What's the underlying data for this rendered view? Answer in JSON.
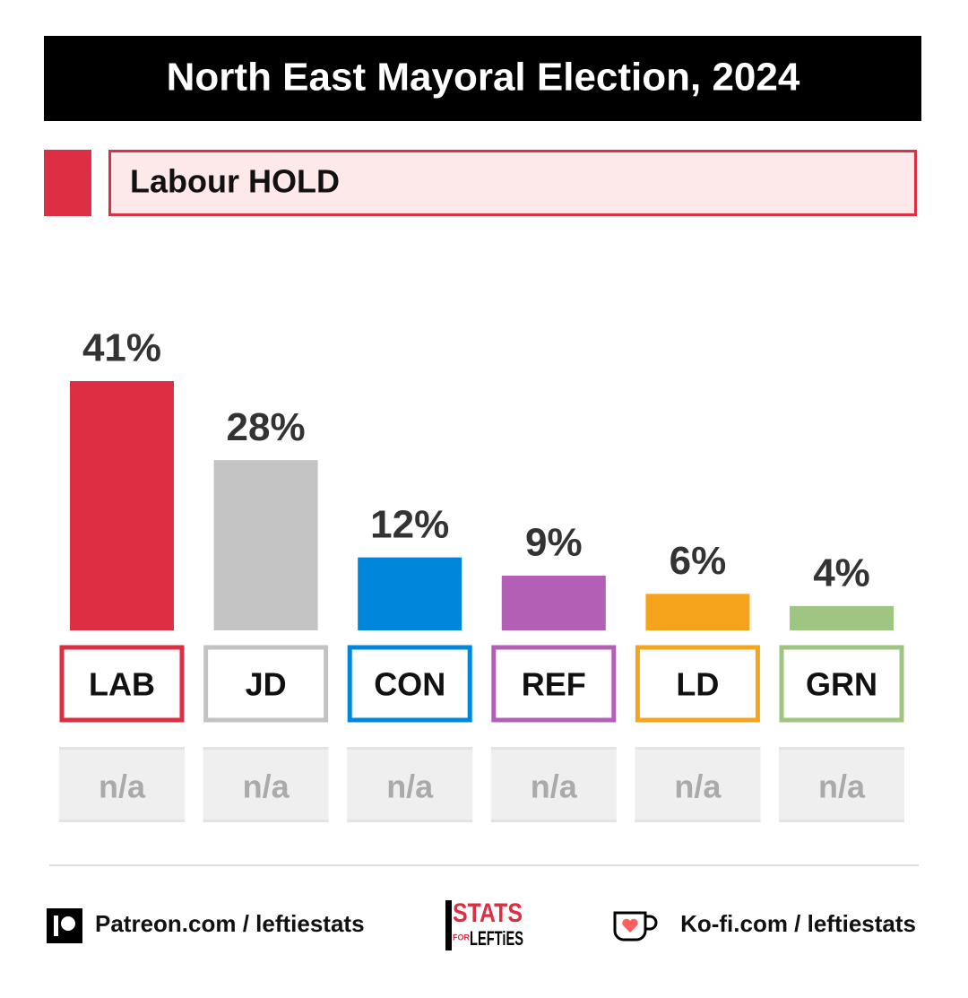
{
  "chart_data": {
    "type": "bar",
    "title": "North East Mayoral Election, 2024",
    "result": "Labour HOLD",
    "categories": [
      "LAB",
      "JD",
      "CON",
      "REF",
      "LD",
      "GRN"
    ],
    "values": [
      41,
      28,
      12,
      9,
      6,
      4
    ],
    "value_labels": [
      "41%",
      "28%",
      "12%",
      "9%",
      "6%",
      "4%"
    ],
    "colors": [
      "#dc2f44",
      "#c3c3c3",
      "#0087dc",
      "#b35fb5",
      "#f6a41c",
      "#9ec682"
    ],
    "changes": [
      "n/a",
      "n/a",
      "n/a",
      "n/a",
      "n/a",
      "n/a"
    ]
  },
  "footer": {
    "left": "Patreon.com / leftiestats",
    "right": "Ko-fi.com / leftiestats",
    "logo": [
      "STATS",
      "FOR",
      "LEFTiES"
    ]
  }
}
